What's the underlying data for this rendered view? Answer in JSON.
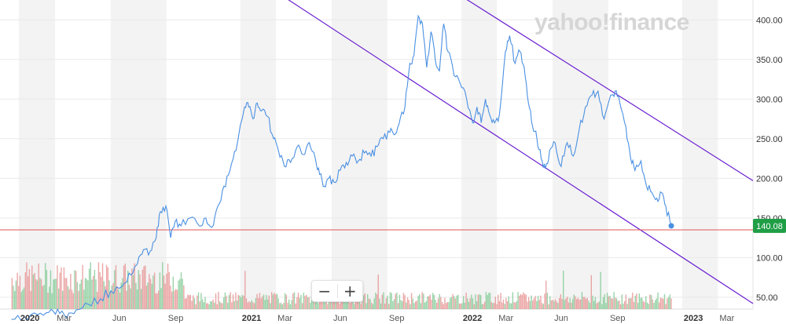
{
  "logo": {
    "text": "yahoo!finance"
  },
  "zoom": {
    "out_label": "−",
    "in_label": "+"
  },
  "colors": {
    "price_line": "#4a90e2",
    "channel": "#6a1fd1",
    "support": "#e05656",
    "last_badge": "#1f9e46",
    "vol_up": "#78c68c",
    "vol_down": "#e58a8a",
    "shade": "#f3f3f3"
  },
  "chart_data": {
    "type": "line",
    "title": "",
    "xlabel": "",
    "ylabel": "",
    "ylim": [
      35,
      425
    ],
    "xlim": [
      "2019-12-01",
      "2023-04-28"
    ],
    "y_ticks": [
      "50.00",
      "100.00",
      "150.00",
      "200.00",
      "250.00",
      "300.00",
      "350.00",
      "400.00"
    ],
    "x_ticks": [
      {
        "label": "2020",
        "date": "2020-01-01",
        "major": true
      },
      {
        "label": "Mar",
        "date": "2020-03-01",
        "major": false
      },
      {
        "label": "Jun",
        "date": "2020-06-01",
        "major": false
      },
      {
        "label": "Sep",
        "date": "2020-09-01",
        "major": false
      },
      {
        "label": "2021",
        "date": "2021-01-01",
        "major": true
      },
      {
        "label": "Mar",
        "date": "2021-03-01",
        "major": false
      },
      {
        "label": "Jun",
        "date": "2021-06-01",
        "major": false
      },
      {
        "label": "Sep",
        "date": "2021-09-01",
        "major": false
      },
      {
        "label": "2022",
        "date": "2022-01-01",
        "major": true
      },
      {
        "label": "Mar",
        "date": "2022-03-01",
        "major": false
      },
      {
        "label": "Jun",
        "date": "2022-06-01",
        "major": false
      },
      {
        "label": "Sep",
        "date": "2022-09-01",
        "major": false
      },
      {
        "label": "2023",
        "date": "2023-01-01",
        "major": true
      },
      {
        "label": "Mar",
        "date": "2023-03-01",
        "major": false
      }
    ],
    "last_price": {
      "label": "140.08",
      "value": 140.08,
      "date": "2022-12-14"
    },
    "support_line": {
      "value": 135
    },
    "channel_lines": [
      {
        "from": {
          "date": "2021-02-10",
          "value": 445
        },
        "to": {
          "date": "2023-04-28",
          "value": 42
        }
      },
      {
        "from": {
          "date": "2021-12-01",
          "value": 445
        },
        "to": {
          "date": "2023-04-28",
          "value": 197
        }
      }
    ],
    "series": [
      {
        "points": [
          [
            "2019-12-20",
            22
          ],
          [
            "2020-01-10",
            25
          ],
          [
            "2020-02-01",
            28
          ],
          [
            "2020-02-20",
            31
          ],
          [
            "2020-03-05",
            35
          ],
          [
            "2020-03-20",
            24
          ],
          [
            "2020-04-05",
            34
          ],
          [
            "2020-04-25",
            41
          ],
          [
            "2020-05-15",
            48
          ],
          [
            "2020-06-01",
            58
          ],
          [
            "2020-06-20",
            64
          ],
          [
            "2020-07-05",
            78
          ],
          [
            "2020-07-15",
            92
          ],
          [
            "2020-07-25",
            110
          ],
          [
            "2020-08-05",
            108
          ],
          [
            "2020-08-15",
            125
          ],
          [
            "2020-08-22",
            158
          ],
          [
            "2020-08-31",
            165
          ],
          [
            "2020-09-08",
            125
          ],
          [
            "2020-09-15",
            145
          ],
          [
            "2020-09-25",
            140
          ],
          [
            "2020-10-10",
            150
          ],
          [
            "2020-10-25",
            140
          ],
          [
            "2020-11-05",
            150
          ],
          [
            "2020-11-15",
            138
          ],
          [
            "2020-11-25",
            165
          ],
          [
            "2020-12-05",
            190
          ],
          [
            "2020-12-15",
            210
          ],
          [
            "2020-12-25",
            235
          ],
          [
            "2021-01-08",
            290
          ],
          [
            "2021-01-15",
            290
          ],
          [
            "2021-01-22",
            275
          ],
          [
            "2021-01-29",
            295
          ],
          [
            "2021-02-05",
            285
          ],
          [
            "2021-02-15",
            278
          ],
          [
            "2021-02-25",
            250
          ],
          [
            "2021-03-05",
            235
          ],
          [
            "2021-03-15",
            215
          ],
          [
            "2021-03-25",
            220
          ],
          [
            "2021-04-05",
            240
          ],
          [
            "2021-04-15",
            230
          ],
          [
            "2021-04-25",
            245
          ],
          [
            "2021-05-05",
            225
          ],
          [
            "2021-05-12",
            205
          ],
          [
            "2021-05-20",
            190
          ],
          [
            "2021-05-27",
            200
          ],
          [
            "2021-06-05",
            195
          ],
          [
            "2021-06-15",
            210
          ],
          [
            "2021-06-25",
            220
          ],
          [
            "2021-07-05",
            228
          ],
          [
            "2021-07-15",
            222
          ],
          [
            "2021-07-25",
            232
          ],
          [
            "2021-08-05",
            228
          ],
          [
            "2021-08-15",
            240
          ],
          [
            "2021-08-25",
            250
          ],
          [
            "2021-09-05",
            258
          ],
          [
            "2021-09-12",
            255
          ],
          [
            "2021-09-20",
            268
          ],
          [
            "2021-09-30",
            290
          ],
          [
            "2021-10-08",
            345
          ],
          [
            "2021-10-15",
            355
          ],
          [
            "2021-10-22",
            405
          ],
          [
            "2021-10-29",
            395
          ],
          [
            "2021-11-05",
            340
          ],
          [
            "2021-11-12",
            385
          ],
          [
            "2021-11-19",
            350
          ],
          [
            "2021-11-26",
            335
          ],
          [
            "2021-12-03",
            395
          ],
          [
            "2021-12-10",
            360
          ],
          [
            "2021-12-20",
            330
          ],
          [
            "2021-12-30",
            320
          ],
          [
            "2022-01-10",
            300
          ],
          [
            "2022-01-20",
            270
          ],
          [
            "2022-01-27",
            290
          ],
          [
            "2022-02-03",
            270
          ],
          [
            "2022-02-10",
            300
          ],
          [
            "2022-02-17",
            280
          ],
          [
            "2022-02-25",
            270
          ],
          [
            "2022-03-05",
            280
          ],
          [
            "2022-03-15",
            360
          ],
          [
            "2022-03-22",
            380
          ],
          [
            "2022-03-31",
            345
          ],
          [
            "2022-04-08",
            360
          ],
          [
            "2022-04-15",
            340
          ],
          [
            "2022-04-22",
            295
          ],
          [
            "2022-04-29",
            265
          ],
          [
            "2022-05-06",
            250
          ],
          [
            "2022-05-13",
            225
          ],
          [
            "2022-05-20",
            212
          ],
          [
            "2022-05-27",
            235
          ],
          [
            "2022-06-05",
            245
          ],
          [
            "2022-06-15",
            215
          ],
          [
            "2022-06-25",
            245
          ],
          [
            "2022-07-05",
            228
          ],
          [
            "2022-07-15",
            262
          ],
          [
            "2022-07-25",
            290
          ],
          [
            "2022-08-05",
            305
          ],
          [
            "2022-08-15",
            310
          ],
          [
            "2022-08-25",
            275
          ],
          [
            "2022-09-05",
            305
          ],
          [
            "2022-09-12",
            310
          ],
          [
            "2022-09-20",
            295
          ],
          [
            "2022-09-30",
            265
          ],
          [
            "2022-10-08",
            225
          ],
          [
            "2022-10-15",
            210
          ],
          [
            "2022-10-25",
            222
          ],
          [
            "2022-11-03",
            190
          ],
          [
            "2022-11-12",
            182
          ],
          [
            "2022-11-20",
            175
          ],
          [
            "2022-11-28",
            182
          ],
          [
            "2022-12-05",
            165
          ],
          [
            "2022-12-14",
            140.08
          ]
        ]
      }
    ]
  }
}
